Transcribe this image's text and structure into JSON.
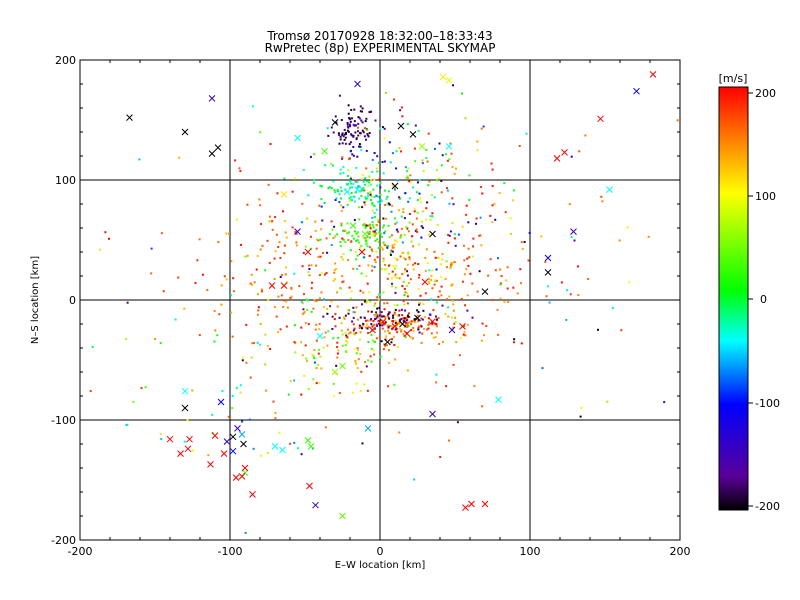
{
  "chart_data": {
    "type": "scatter",
    "title": "Tromsø 20170928 18:32:00–18:33:43",
    "subtitle": "RwPretec (8p) EXPERIMENTAL SKYMAP",
    "xlabel": "E–W location [km]",
    "ylabel": "N–S location [km]",
    "xlim": [
      -200,
      200
    ],
    "ylim": [
      -200,
      200
    ],
    "xticks": [
      "-200",
      "-100",
      "0",
      "100",
      "200"
    ],
    "yticks": [
      "-200",
      "-100",
      "0",
      "100",
      "200"
    ],
    "grid": true,
    "colorbar": {
      "label": "[m/s]",
      "range": [
        -200,
        200
      ],
      "ticks": [
        "200",
        "100",
        "0",
        "-100",
        "-200"
      ],
      "colors": [
        "#000000",
        "#7700cc",
        "#0000ff",
        "#00ffff",
        "#00ff00",
        "#ffff00",
        "#ff0000"
      ]
    },
    "markers": {
      "dot": "small points",
      "cross": "x"
    },
    "crosses": [
      {
        "x": -167,
        "y": 152,
        "v": -200
      },
      {
        "x": -130,
        "y": 140,
        "v": -200
      },
      {
        "x": -112,
        "y": 122,
        "v": -200
      },
      {
        "x": -108,
        "y": 127,
        "v": -200
      },
      {
        "x": -112,
        "y": 168,
        "v": -150
      },
      {
        "x": -15,
        "y": 180,
        "v": -150
      },
      {
        "x": 42,
        "y": 186,
        "v": 110
      },
      {
        "x": 46,
        "y": 183,
        "v": 90
      },
      {
        "x": 182,
        "y": 188,
        "v": 200
      },
      {
        "x": 171,
        "y": 174,
        "v": -120
      },
      {
        "x": 147,
        "y": 151,
        "v": 200
      },
      {
        "x": 118,
        "y": 118,
        "v": 200
      },
      {
        "x": 123,
        "y": 123,
        "v": 200
      },
      {
        "x": 153,
        "y": 92,
        "v": -60
      },
      {
        "x": 129,
        "y": 57,
        "v": -150
      },
      {
        "x": 112,
        "y": 35,
        "v": -130
      },
      {
        "x": 112,
        "y": 23,
        "v": -200
      },
      {
        "x": 70,
        "y": 7,
        "v": -200
      },
      {
        "x": -64,
        "y": 88,
        "v": 110
      },
      {
        "x": -55,
        "y": 57,
        "v": -150
      },
      {
        "x": -48,
        "y": 40,
        "v": 200
      },
      {
        "x": -72,
        "y": 12,
        "v": 200
      },
      {
        "x": -64,
        "y": 12,
        "v": 200
      },
      {
        "x": -37,
        "y": 124,
        "v": 20
      },
      {
        "x": -55,
        "y": 135,
        "v": -60
      },
      {
        "x": -130,
        "y": -76,
        "v": -60
      },
      {
        "x": -130,
        "y": -90,
        "v": -200
      },
      {
        "x": -106,
        "y": -85,
        "v": -120
      },
      {
        "x": -95,
        "y": -107,
        "v": -150
      },
      {
        "x": -98,
        "y": -114,
        "v": -200
      },
      {
        "x": -102,
        "y": -118,
        "v": -150
      },
      {
        "x": -98,
        "y": -126,
        "v": -120
      },
      {
        "x": -92,
        "y": -112,
        "v": -80
      },
      {
        "x": -91,
        "y": -120,
        "v": -200
      },
      {
        "x": -110,
        "y": -113,
        "v": 200
      },
      {
        "x": -140,
        "y": -116,
        "v": 200
      },
      {
        "x": -127,
        "y": -116,
        "v": 200
      },
      {
        "x": -128,
        "y": -124,
        "v": 200
      },
      {
        "x": -133,
        "y": -128,
        "v": 200
      },
      {
        "x": -113,
        "y": -137,
        "v": 200
      },
      {
        "x": -104,
        "y": -128,
        "v": 200
      },
      {
        "x": -90,
        "y": -144,
        "v": 20
      },
      {
        "x": -90,
        "y": -140,
        "v": 200
      },
      {
        "x": -92,
        "y": -147,
        "v": 200
      },
      {
        "x": -96,
        "y": -148,
        "v": 200
      },
      {
        "x": -85,
        "y": -162,
        "v": 200
      },
      {
        "x": -70,
        "y": -122,
        "v": -60
      },
      {
        "x": -65,
        "y": -125,
        "v": -60
      },
      {
        "x": -48,
        "y": -117,
        "v": 20
      },
      {
        "x": -46,
        "y": -122,
        "v": 20
      },
      {
        "x": -47,
        "y": -155,
        "v": 200
      },
      {
        "x": -43,
        "y": -171,
        "v": -150
      },
      {
        "x": -25,
        "y": -180,
        "v": 40
      },
      {
        "x": -8,
        "y": -107,
        "v": -80
      },
      {
        "x": 35,
        "y": -95,
        "v": -150
      },
      {
        "x": 79,
        "y": -83,
        "v": -60
      },
      {
        "x": 57,
        "y": -173,
        "v": 200
      },
      {
        "x": 61,
        "y": -170,
        "v": 200
      },
      {
        "x": 70,
        "y": -170,
        "v": 200
      },
      {
        "x": 28,
        "y": 128,
        "v": 60
      },
      {
        "x": 46,
        "y": 128,
        "v": -60
      },
      {
        "x": -30,
        "y": 148,
        "v": -200
      },
      {
        "x": 14,
        "y": 145,
        "v": -200
      },
      {
        "x": 22,
        "y": 138,
        "v": -200
      },
      {
        "x": 10,
        "y": 95,
        "v": -200
      },
      {
        "x": 5,
        "y": -35,
        "v": -200
      },
      {
        "x": 15,
        "y": -20,
        "v": -200
      },
      {
        "x": 25,
        "y": -15,
        "v": -200
      },
      {
        "x": -5,
        "y": -25,
        "v": 200
      },
      {
        "x": 2,
        "y": -18,
        "v": 200
      },
      {
        "x": 10,
        "y": -22,
        "v": 200
      },
      {
        "x": 18,
        "y": -28,
        "v": 200
      },
      {
        "x": 35,
        "y": -18,
        "v": 200
      },
      {
        "x": 48,
        "y": -25,
        "v": -150
      },
      {
        "x": 55,
        "y": -22,
        "v": 200
      },
      {
        "x": -25,
        "y": -55,
        "v": 40
      },
      {
        "x": -30,
        "y": -60,
        "v": 60
      },
      {
        "x": -40,
        "y": -30,
        "v": -60
      },
      {
        "x": -22,
        "y": 90,
        "v": -60
      },
      {
        "x": -15,
        "y": 92,
        "v": -60
      },
      {
        "x": -18,
        "y": 62,
        "v": 20
      },
      {
        "x": -10,
        "y": 55,
        "v": 40
      },
      {
        "x": -12,
        "y": 40,
        "v": 200
      },
      {
        "x": 35,
        "y": 55,
        "v": -200
      },
      {
        "x": 30,
        "y": 15,
        "v": 200
      }
    ],
    "clusters": [
      {
        "cx": -18,
        "cy": 142,
        "sx": 8,
        "sy": 10,
        "n": 90,
        "v": [
          -200,
          -150
        ]
      },
      {
        "cx": -15,
        "cy": 92,
        "sx": 14,
        "sy": 8,
        "n": 90,
        "v": [
          -60,
          0
        ]
      },
      {
        "cx": -12,
        "cy": 55,
        "sx": 10,
        "sy": 8,
        "n": 70,
        "v": [
          0,
          40
        ]
      },
      {
        "cx": -5,
        "cy": 80,
        "sx": 22,
        "sy": 30,
        "n": 120,
        "v": [
          -200,
          200
        ]
      },
      {
        "cx": 15,
        "cy": 25,
        "sx": 20,
        "sy": 25,
        "n": 140,
        "v": [
          40,
          200
        ]
      },
      {
        "cx": 10,
        "cy": -20,
        "sx": 22,
        "sy": 6,
        "n": 140,
        "v": [
          120,
          200
        ]
      },
      {
        "cx": 5,
        "cy": -15,
        "sx": 25,
        "sy": 6,
        "n": 80,
        "v": [
          -200,
          -150
        ]
      },
      {
        "cx": -20,
        "cy": -40,
        "sx": 18,
        "sy": 18,
        "n": 90,
        "v": [
          0,
          200
        ]
      },
      {
        "cx": -50,
        "cy": 20,
        "sx": 40,
        "sy": 40,
        "n": 200,
        "v": [
          120,
          200
        ]
      },
      {
        "cx": 60,
        "cy": 40,
        "sx": 40,
        "sy": 50,
        "n": 150,
        "v": [
          120,
          200
        ]
      },
      {
        "cx": 0,
        "cy": 10,
        "sx": 90,
        "sy": 80,
        "n": 140,
        "v": [
          -200,
          200
        ]
      },
      {
        "cx": -100,
        "cy": -60,
        "sx": 35,
        "sy": 40,
        "n": 50,
        "v": [
          -100,
          200
        ]
      },
      {
        "cx": 25,
        "cy": 100,
        "sx": 30,
        "sy": 40,
        "n": 80,
        "v": [
          -200,
          200
        ]
      }
    ]
  }
}
